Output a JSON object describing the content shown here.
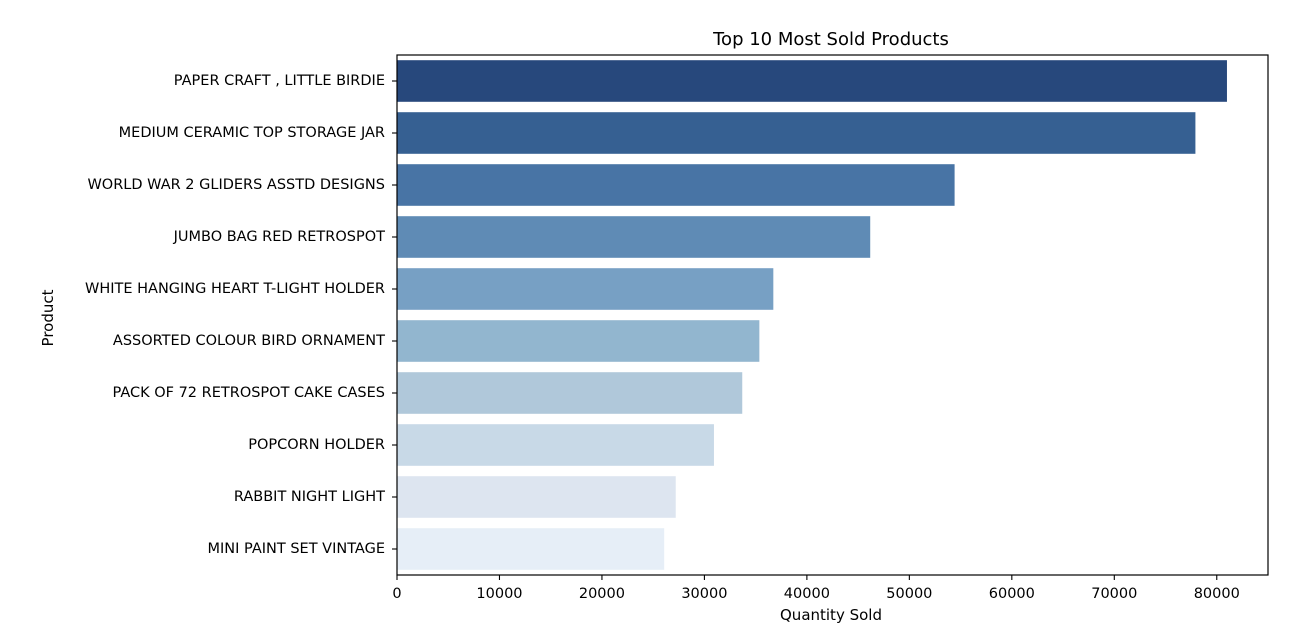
{
  "chart_data": {
    "type": "bar",
    "orientation": "horizontal",
    "title": "Top 10 Most Sold Products",
    "xlabel": "Quantity Sold",
    "ylabel": "Product",
    "xlim": [
      0,
      85000
    ],
    "x_ticks": [
      0,
      10000,
      20000,
      30000,
      40000,
      50000,
      60000,
      70000,
      80000
    ],
    "grid": false,
    "categories": [
      "PAPER CRAFT , LITTLE BIRDIE",
      "MEDIUM CERAMIC TOP STORAGE JAR",
      "WORLD WAR 2 GLIDERS ASSTD DESIGNS",
      "JUMBO BAG RED RETROSPOT",
      "WHITE HANGING HEART T-LIGHT HOLDER",
      "ASSORTED COLOUR BIRD ORNAMENT",
      "PACK OF 72 RETROSPOT CAKE CASES",
      "POPCORN HOLDER",
      "RABBIT NIGHT LIGHT",
      "MINI PAINT SET VINTAGE "
    ],
    "values": [
      80995,
      77916,
      54415,
      46181,
      36725,
      35362,
      33693,
      30931,
      27202,
      26076
    ],
    "colors": [
      "#27487c",
      "#366092",
      "#4874a5",
      "#5f8bb5",
      "#77a0c4",
      "#92b6cf",
      "#b0c8da",
      "#c8d9e7",
      "#dde5f0",
      "#e6eef7"
    ]
  }
}
